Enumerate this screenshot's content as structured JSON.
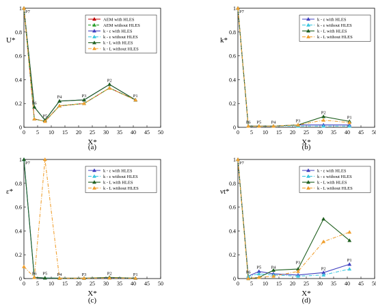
{
  "chart_data": [
    {
      "type": "line",
      "caption": "(a)",
      "xlabel": "X*",
      "ylabel": "U*",
      "xlim": [
        0,
        50
      ],
      "ylim": [
        0,
        1
      ],
      "xticks": [
        "0",
        "5",
        "10",
        "15",
        "20",
        "25",
        "30",
        "35",
        "40",
        "45",
        "50"
      ],
      "yticks": [
        "0",
        "0.2",
        "0.4",
        "0.6",
        "0.8",
        "1"
      ],
      "grid": false,
      "legend_position": "top-right",
      "points": [
        {
          "label": "P7",
          "x": 0,
          "y": 1.0
        },
        {
          "label": "P6",
          "x": 3.8,
          "y": 0.17
        },
        {
          "label": "P5",
          "x": 7.7,
          "y": 0.06
        },
        {
          "label": "P4",
          "x": 13,
          "y": 0.22
        },
        {
          "label": "P3",
          "x": 22,
          "y": 0.23
        },
        {
          "label": "P2",
          "x": 31.3,
          "y": 0.36
        },
        {
          "label": "P1",
          "x": 40.8,
          "y": 0.23
        }
      ],
      "x": [
        0,
        3.8,
        7.7,
        13,
        22,
        31.3,
        40.8
      ],
      "series": [
        {
          "name": "AEM with HLES",
          "color": "#c00000",
          "dash": "none",
          "marker": "triangle",
          "values": [
            1.0,
            0.07,
            0.05,
            0.18,
            0.2,
            0.33,
            0.23
          ]
        },
        {
          "name": "AEM without HLES",
          "color": "#2ca02c",
          "dash": "dash",
          "marker": "triangle",
          "values": [
            1.0,
            0.07,
            0.05,
            0.18,
            0.2,
            0.33,
            0.23
          ]
        },
        {
          "name": "k - ε with HLES",
          "color": "#4040c0",
          "dash": "none",
          "marker": "triangle",
          "values": [
            1.0,
            0.17,
            0.06,
            0.22,
            0.23,
            0.36,
            0.23
          ]
        },
        {
          "name": "k - ε without HLES",
          "color": "#40c8e0",
          "dash": "dashdot",
          "marker": "triangle",
          "values": [
            1.0,
            0.07,
            0.05,
            0.18,
            0.2,
            0.33,
            0.23
          ]
        },
        {
          "name": "k - L with HLES",
          "color": "#1f5f1f",
          "dash": "none",
          "marker": "triangle",
          "values": [
            1.0,
            0.17,
            0.06,
            0.22,
            0.23,
            0.36,
            0.23
          ]
        },
        {
          "name": "k - L without HLES",
          "color": "#f0a030",
          "dash": "dashdot",
          "marker": "triangle",
          "values": [
            1.0,
            0.07,
            0.05,
            0.18,
            0.2,
            0.33,
            0.23
          ]
        }
      ]
    },
    {
      "type": "line",
      "caption": "(b)",
      "xlabel": "X*",
      "ylabel": "k*",
      "xlim": [
        0,
        50
      ],
      "ylim": [
        0,
        1
      ],
      "xticks": [
        "0",
        "5",
        "10",
        "15",
        "20",
        "25",
        "30",
        "35",
        "40",
        "45",
        "50"
      ],
      "yticks": [
        "0",
        "0.2",
        "0.4",
        "0.6",
        "0.8",
        "1"
      ],
      "grid": false,
      "legend_position": "top-right",
      "points": [
        {
          "label": "P7",
          "x": 0,
          "y": 1.0
        },
        {
          "label": "P6",
          "x": 3.8,
          "y": 0.01
        },
        {
          "label": "P5",
          "x": 7.7,
          "y": 0.01
        },
        {
          "label": "P4",
          "x": 13,
          "y": 0.01
        },
        {
          "label": "P3",
          "x": 22,
          "y": 0.02
        },
        {
          "label": "P2",
          "x": 31.3,
          "y": 0.09
        },
        {
          "label": "P1",
          "x": 40.8,
          "y": 0.05
        }
      ],
      "x": [
        0,
        3.8,
        7.7,
        13,
        22,
        31.3,
        40.8
      ],
      "series": [
        {
          "name": "k - ε with HLES",
          "color": "#4040c0",
          "dash": "none",
          "marker": "triangle",
          "values": [
            1.0,
            0.01,
            0.01,
            0.01,
            0.02,
            0.02,
            0.02
          ]
        },
        {
          "name": "k - ε without HLES",
          "color": "#40c8e0",
          "dash": "dashdot",
          "marker": "triangle",
          "values": [
            1.0,
            0.01,
            0.01,
            0.01,
            0.01,
            0.01,
            0.01
          ]
        },
        {
          "name": "k - L with HLES",
          "color": "#1f5f1f",
          "dash": "none",
          "marker": "triangle",
          "values": [
            1.0,
            0.01,
            0.01,
            0.01,
            0.02,
            0.09,
            0.05
          ]
        },
        {
          "name": "k - L without HLES",
          "color": "#f0a030",
          "dash": "dashdot",
          "marker": "triangle",
          "values": [
            1.0,
            0.01,
            0.01,
            0.01,
            0.02,
            0.06,
            0.04
          ]
        }
      ]
    },
    {
      "type": "line",
      "caption": "(c)",
      "xlabel": "X*",
      "ylabel": "ε*",
      "xlim": [
        0,
        50
      ],
      "ylim": [
        0,
        1
      ],
      "xticks": [
        "0",
        "5",
        "10",
        "15",
        "20",
        "25",
        "30",
        "35",
        "40",
        "45",
        "50"
      ],
      "yticks": [
        "0",
        "0.2",
        "0.4",
        "0.6",
        "0.8",
        "1"
      ],
      "grid": false,
      "legend_position": "top-right",
      "points": [
        {
          "label": "P7",
          "x": 0,
          "y": 1.0
        },
        {
          "label": "P6",
          "x": 3.8,
          "y": 0.01
        },
        {
          "label": "P5",
          "x": 7.7,
          "y": 0.01
        },
        {
          "label": "P4",
          "x": 13,
          "y": 0.0
        },
        {
          "label": "P3",
          "x": 22,
          "y": 0.0
        },
        {
          "label": "P2",
          "x": 31.3,
          "y": 0.01
        },
        {
          "label": "P1",
          "x": 40.8,
          "y": 0.0
        }
      ],
      "x": [
        0,
        3.8,
        7.7,
        13,
        22,
        31.3,
        40.8
      ],
      "series": [
        {
          "name": "k - ε with HLES",
          "color": "#4040c0",
          "dash": "none",
          "marker": "triangle",
          "values": [
            1.0,
            0.01,
            0.005,
            0.003,
            0.003,
            0.005,
            0.003
          ]
        },
        {
          "name": "k - ε without HLES",
          "color": "#40c8e0",
          "dash": "dashdot",
          "marker": "triangle",
          "values": [
            1.0,
            0.01,
            0.005,
            0.003,
            0.003,
            0.005,
            0.003
          ]
        },
        {
          "name": "k - L with HLES",
          "color": "#1f5f1f",
          "dash": "none",
          "marker": "triangle",
          "values": [
            1.0,
            0.01,
            0.005,
            0.003,
            0.003,
            0.01,
            0.003
          ]
        },
        {
          "name": "k - L without HLES",
          "color": "#f0a030",
          "dash": "dashdot",
          "marker": "triangle",
          "values": [
            0.1,
            0.01,
            1.0,
            0.003,
            0.003,
            0.005,
            0.003
          ]
        }
      ]
    },
    {
      "type": "line",
      "caption": "(d)",
      "xlabel": "X*",
      "ylabel": "νt*",
      "xlim": [
        0,
        50
      ],
      "ylim": [
        0,
        1
      ],
      "xticks": [
        "0",
        "5",
        "10",
        "15",
        "20",
        "25",
        "30",
        "35",
        "40",
        "45",
        "50"
      ],
      "yticks": [
        "0",
        "0.2",
        "0.4",
        "0.6",
        "0.8",
        "1"
      ],
      "grid": false,
      "legend_position": "top-right",
      "points": [
        {
          "label": "P7",
          "x": 0,
          "y": 1.0
        },
        {
          "label": "P6",
          "x": 3.8,
          "y": 0.02
        },
        {
          "label": "P5",
          "x": 7.7,
          "y": 0.06
        },
        {
          "label": "P4",
          "x": 13,
          "y": 0.06
        },
        {
          "label": "P3",
          "x": 22,
          "y": 0.1
        },
        {
          "label": "P2",
          "x": 31.3,
          "y": 0.05
        },
        {
          "label": "P1",
          "x": 40.8,
          "y": 0.12
        }
      ],
      "x": [
        0,
        3.8,
        7.7,
        13,
        22,
        31.3,
        40.8
      ],
      "series": [
        {
          "name": "k - ε with HLES",
          "color": "#4040c0",
          "dash": "none",
          "marker": "triangle",
          "values": [
            1.0,
            0.02,
            0.06,
            0.04,
            0.03,
            0.05,
            0.12
          ]
        },
        {
          "name": "k - ε without HLES",
          "color": "#40c8e0",
          "dash": "dashdot",
          "marker": "triangle",
          "values": [
            1.0,
            0.02,
            0.04,
            0.03,
            0.02,
            0.03,
            0.08
          ]
        },
        {
          "name": "k - L with HLES",
          "color": "#1f5f1f",
          "dash": "none",
          "marker": "triangle",
          "values": [
            1.0,
            0.0,
            0.01,
            0.07,
            0.08,
            0.5,
            0.32
          ]
        },
        {
          "name": "k - L without HLES",
          "color": "#f0a030",
          "dash": "dashdot",
          "marker": "triangle",
          "values": [
            1.0,
            0.0,
            0.01,
            0.02,
            0.06,
            0.31,
            0.39
          ]
        }
      ]
    }
  ]
}
